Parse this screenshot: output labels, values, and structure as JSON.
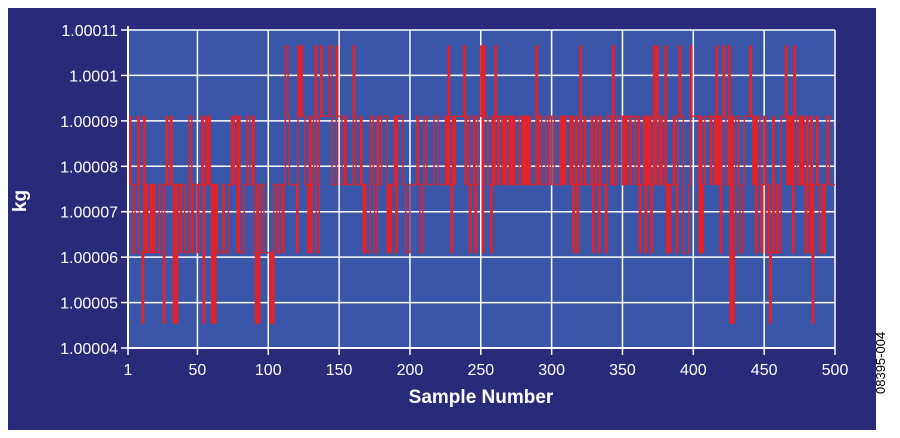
{
  "figure_id": "08395-004",
  "colors": {
    "frame_background": "#2a2a7a",
    "plot_background": "#3a56a8",
    "grid": "#ffffff",
    "series": "#e0222a",
    "text": "#ffffff"
  },
  "chart_data": {
    "type": "line",
    "title": "",
    "xlabel": "Sample Number",
    "ylabel": "kg",
    "xlim": [
      1,
      500
    ],
    "ylim": [
      1.00004,
      1.00011
    ],
    "x_ticks": [
      1,
      50,
      100,
      150,
      200,
      250,
      300,
      350,
      400,
      450,
      500
    ],
    "y_ticks": [
      1.00004,
      1.00005,
      1.00006,
      1.00007,
      1.00008,
      1.00009,
      1.0001,
      1.00011
    ],
    "y_tick_labels": [
      "1.00004",
      "1.00005",
      "1.00006",
      "1.00007",
      "1.00008",
      "1.00009",
      "1.0001",
      "1.00011"
    ],
    "grid": true,
    "legend": "none",
    "levels": [
      1.0000455,
      1.000061,
      1.000076,
      1.000091,
      1.0001065
    ],
    "segments": [
      {
        "x_start": 1,
        "x_end": 110,
        "levels": [
          0,
          1,
          2,
          3,
          4
        ],
        "weights": [
          0.14,
          0.4,
          0.36,
          0.1,
          0.0
        ]
      },
      {
        "x_start": 110,
        "x_end": 165,
        "levels": [
          0,
          1,
          2,
          3,
          4
        ],
        "weights": [
          0.06,
          0.2,
          0.34,
          0.3,
          0.1
        ]
      },
      {
        "x_start": 165,
        "x_end": 215,
        "levels": [
          0,
          1,
          2,
          3,
          4
        ],
        "weights": [
          0.0,
          0.25,
          0.5,
          0.25,
          0.0
        ]
      },
      {
        "x_start": 215,
        "x_end": 300,
        "levels": [
          0,
          1,
          2,
          3,
          4
        ],
        "weights": [
          0.0,
          0.1,
          0.42,
          0.4,
          0.08
        ]
      },
      {
        "x_start": 300,
        "x_end": 390,
        "levels": [
          0,
          1,
          2,
          3,
          4
        ],
        "weights": [
          0.0,
          0.1,
          0.45,
          0.38,
          0.07
        ]
      },
      {
        "x_start": 390,
        "x_end": 440,
        "levels": [
          0,
          1,
          2,
          3,
          4
        ],
        "weights": [
          0.04,
          0.1,
          0.36,
          0.42,
          0.08
        ]
      },
      {
        "x_start": 440,
        "x_end": 500,
        "levels": [
          0,
          1,
          2,
          3,
          4
        ],
        "weights": [
          0.06,
          0.24,
          0.36,
          0.26,
          0.08
        ]
      }
    ],
    "point_count": 500
  }
}
